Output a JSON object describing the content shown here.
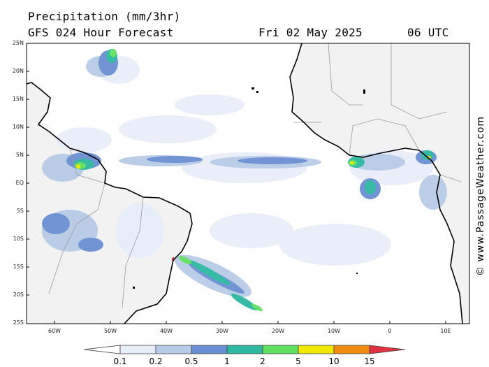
{
  "header": {
    "title": "Precipitation (mm/3hr)",
    "subtitle": "GFS 024 Hour Forecast",
    "date": "Fri 02 May 2025",
    "time": "06 UTC"
  },
  "credit": "© www.PassageWeather.com",
  "map": {
    "lat_labels": [
      "25N",
      "20N",
      "15N",
      "10N",
      "5N",
      "EQ",
      "5S",
      "10S",
      "15S",
      "20S",
      "25S"
    ],
    "lon_labels": [
      "60W",
      "50W",
      "40W",
      "30W",
      "20W",
      "10W",
      "0",
      "10E"
    ],
    "land_color": "#f2f2f2",
    "ocean_color": "#ffffff",
    "coast_color": "#000000",
    "border_color": "#9a9a9a"
  },
  "colorbar": {
    "labels": [
      "0.1",
      "0.2",
      "0.5",
      "1",
      "2",
      "5",
      "10",
      "15"
    ],
    "colors": [
      "#e8eef8",
      "#b8cbe6",
      "#6b8fd3",
      "#2db8a0",
      "#60e060",
      "#f0e800",
      "#f08a10",
      "#e03040"
    ]
  }
}
